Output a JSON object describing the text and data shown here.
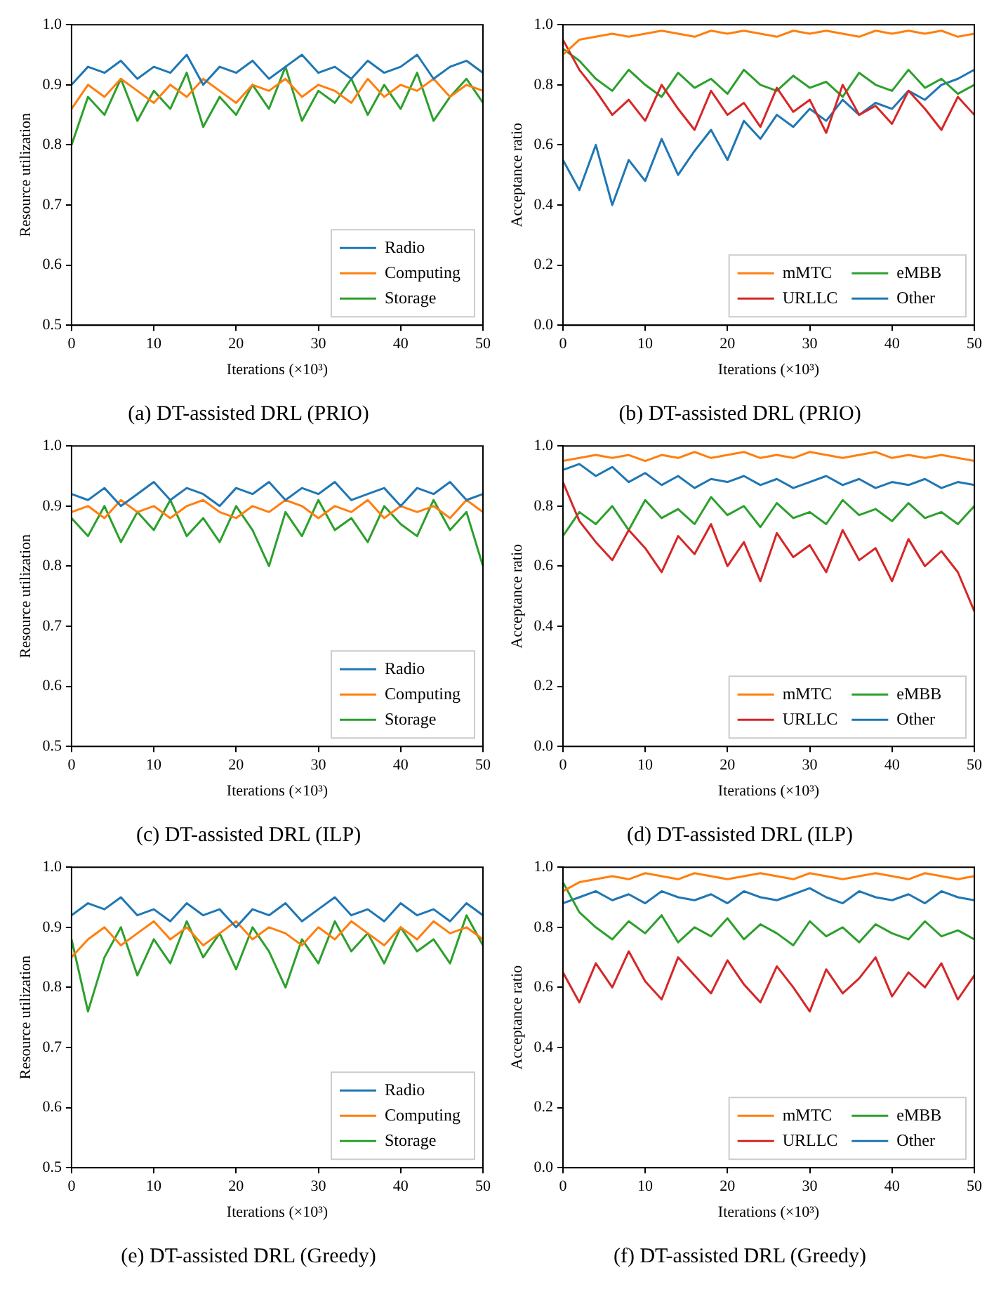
{
  "chart_data": [
    {
      "type": "line",
      "title": "(a) DT-assisted DRL (PRIO)",
      "xlabel": "Iterations (×10³)",
      "ylabel": "Resource utilization",
      "x": [
        0,
        2,
        4,
        6,
        8,
        10,
        12,
        14,
        16,
        18,
        20,
        22,
        24,
        26,
        28,
        30,
        32,
        34,
        36,
        38,
        40,
        42,
        44,
        46,
        48,
        50
      ],
      "xlim": [
        0,
        50
      ],
      "xticks": [
        0,
        10,
        20,
        30,
        40,
        50
      ],
      "ylim": [
        0.5,
        1.0
      ],
      "yticks": [
        {
          "value": 0.5,
          "label": "0.5"
        },
        {
          "value": 0.6,
          "label": "0.6"
        },
        {
          "value": 0.7,
          "label": "0.7"
        },
        {
          "value": 0.8,
          "label": "0.8"
        },
        {
          "value": 0.9,
          "label": "0.9"
        },
        {
          "value": 1.0,
          "label": "1.0"
        }
      ],
      "grid": false,
      "legend": "bottom right",
      "series": [
        {
          "name": "Radio",
          "color": "#1f77b4",
          "values": [
            0.9,
            0.93,
            0.92,
            0.94,
            0.91,
            0.93,
            0.92,
            0.95,
            0.9,
            0.93,
            0.92,
            0.94,
            0.91,
            0.93,
            0.95,
            0.92,
            0.93,
            0.91,
            0.94,
            0.92,
            0.93,
            0.95,
            0.91,
            0.93,
            0.94,
            0.92
          ]
        },
        {
          "name": "Computing",
          "color": "#ff7f0e",
          "values": [
            0.86,
            0.9,
            0.88,
            0.91,
            0.89,
            0.87,
            0.9,
            0.88,
            0.91,
            0.89,
            0.87,
            0.9,
            0.89,
            0.91,
            0.88,
            0.9,
            0.89,
            0.87,
            0.91,
            0.88,
            0.9,
            0.89,
            0.91,
            0.88,
            0.9,
            0.89
          ]
        },
        {
          "name": "Storage",
          "color": "#2ca02c",
          "values": [
            0.8,
            0.88,
            0.85,
            0.91,
            0.84,
            0.89,
            0.86,
            0.92,
            0.83,
            0.88,
            0.85,
            0.9,
            0.86,
            0.93,
            0.84,
            0.89,
            0.87,
            0.91,
            0.85,
            0.9,
            0.86,
            0.92,
            0.84,
            0.88,
            0.91,
            0.87
          ]
        }
      ]
    },
    {
      "type": "line",
      "title": "(b) DT-assisted DRL (PRIO)",
      "xlabel": "Iterations (×10³)",
      "ylabel": "Acceptance ratio",
      "x": [
        0,
        2,
        4,
        6,
        8,
        10,
        12,
        14,
        16,
        18,
        20,
        22,
        24,
        26,
        28,
        30,
        32,
        34,
        36,
        38,
        40,
        42,
        44,
        46,
        48,
        50
      ],
      "xlim": [
        0,
        50
      ],
      "xticks": [
        0,
        10,
        20,
        30,
        40,
        50
      ],
      "ylim": [
        0.0,
        1.0
      ],
      "yticks": [
        {
          "value": 0,
          "label": "0.0"
        },
        {
          "value": 0.2,
          "label": "0.2"
        },
        {
          "value": 0.4,
          "label": "0.4"
        },
        {
          "value": 0.6,
          "label": "0.6"
        },
        {
          "value": 0.8,
          "label": "0.8"
        },
        {
          "value": 1.0,
          "label": "1.0"
        }
      ],
      "grid": false,
      "legend": "bottom right",
      "series": [
        {
          "name": "mMTC",
          "color": "#ff7f0e",
          "values": [
            0.9,
            0.95,
            0.96,
            0.97,
            0.96,
            0.97,
            0.98,
            0.97,
            0.96,
            0.98,
            0.97,
            0.98,
            0.97,
            0.96,
            0.98,
            0.97,
            0.98,
            0.97,
            0.96,
            0.98,
            0.97,
            0.98,
            0.97,
            0.98,
            0.96,
            0.97
          ]
        },
        {
          "name": "URLLC",
          "color": "#d62728",
          "values": [
            0.95,
            0.85,
            0.78,
            0.7,
            0.75,
            0.68,
            0.8,
            0.72,
            0.65,
            0.78,
            0.7,
            0.74,
            0.66,
            0.79,
            0.71,
            0.75,
            0.64,
            0.8,
            0.7,
            0.73,
            0.67,
            0.78,
            0.72,
            0.65,
            0.76,
            0.7
          ]
        },
        {
          "name": "eMBB",
          "color": "#2ca02c",
          "values": [
            0.92,
            0.88,
            0.82,
            0.78,
            0.85,
            0.8,
            0.76,
            0.84,
            0.79,
            0.82,
            0.77,
            0.85,
            0.8,
            0.78,
            0.83,
            0.79,
            0.81,
            0.76,
            0.84,
            0.8,
            0.78,
            0.85,
            0.79,
            0.82,
            0.77,
            0.8
          ]
        },
        {
          "name": "Other",
          "color": "#1f77b4",
          "values": [
            0.55,
            0.45,
            0.6,
            0.4,
            0.55,
            0.48,
            0.62,
            0.5,
            0.58,
            0.65,
            0.55,
            0.68,
            0.62,
            0.7,
            0.66,
            0.72,
            0.68,
            0.75,
            0.7,
            0.74,
            0.72,
            0.78,
            0.75,
            0.8,
            0.82,
            0.85
          ]
        }
      ]
    },
    {
      "type": "line",
      "title": "(c) DT-assisted DRL (ILP)",
      "xlabel": "Iterations (×10³)",
      "ylabel": "Resource utilization",
      "x": [
        0,
        2,
        4,
        6,
        8,
        10,
        12,
        14,
        16,
        18,
        20,
        22,
        24,
        26,
        28,
        30,
        32,
        34,
        36,
        38,
        40,
        42,
        44,
        46,
        48,
        50
      ],
      "xlim": [
        0,
        50
      ],
      "xticks": [
        0,
        10,
        20,
        30,
        40,
        50
      ],
      "ylim": [
        0.5,
        1.0
      ],
      "yticks": [
        {
          "value": 0.5,
          "label": "0.5"
        },
        {
          "value": 0.6,
          "label": "0.6"
        },
        {
          "value": 0.7,
          "label": "0.7"
        },
        {
          "value": 0.8,
          "label": "0.8"
        },
        {
          "value": 0.9,
          "label": "0.9"
        },
        {
          "value": 1.0,
          "label": "1.0"
        }
      ],
      "grid": false,
      "legend": "bottom right",
      "series": [
        {
          "name": "Radio",
          "color": "#1f77b4",
          "values": [
            0.92,
            0.91,
            0.93,
            0.9,
            0.92,
            0.94,
            0.91,
            0.93,
            0.92,
            0.9,
            0.93,
            0.92,
            0.94,
            0.91,
            0.93,
            0.92,
            0.94,
            0.91,
            0.92,
            0.93,
            0.9,
            0.93,
            0.92,
            0.94,
            0.91,
            0.92
          ]
        },
        {
          "name": "Computing",
          "color": "#ff7f0e",
          "values": [
            0.89,
            0.9,
            0.88,
            0.91,
            0.89,
            0.9,
            0.88,
            0.9,
            0.91,
            0.89,
            0.88,
            0.9,
            0.89,
            0.91,
            0.9,
            0.88,
            0.9,
            0.89,
            0.91,
            0.88,
            0.9,
            0.89,
            0.9,
            0.88,
            0.91,
            0.89
          ]
        },
        {
          "name": "Storage",
          "color": "#2ca02c",
          "values": [
            0.88,
            0.85,
            0.9,
            0.84,
            0.89,
            0.86,
            0.91,
            0.85,
            0.88,
            0.84,
            0.9,
            0.86,
            0.8,
            0.89,
            0.85,
            0.91,
            0.86,
            0.88,
            0.84,
            0.9,
            0.87,
            0.85,
            0.91,
            0.86,
            0.89,
            0.8
          ]
        }
      ]
    },
    {
      "type": "line",
      "title": "(d) DT-assisted DRL (ILP)",
      "xlabel": "Iterations (×10³)",
      "ylabel": "Acceptance ratio",
      "x": [
        0,
        2,
        4,
        6,
        8,
        10,
        12,
        14,
        16,
        18,
        20,
        22,
        24,
        26,
        28,
        30,
        32,
        34,
        36,
        38,
        40,
        42,
        44,
        46,
        48,
        50
      ],
      "xlim": [
        0,
        50
      ],
      "xticks": [
        0,
        10,
        20,
        30,
        40,
        50
      ],
      "ylim": [
        0.0,
        1.0
      ],
      "yticks": [
        {
          "value": 0,
          "label": "0.0"
        },
        {
          "value": 0.2,
          "label": "0.2"
        },
        {
          "value": 0.4,
          "label": "0.4"
        },
        {
          "value": 0.6,
          "label": "0.6"
        },
        {
          "value": 0.8,
          "label": "0.8"
        },
        {
          "value": 1.0,
          "label": "1.0"
        }
      ],
      "grid": false,
      "legend": "bottom right",
      "series": [
        {
          "name": "mMTC",
          "color": "#ff7f0e",
          "values": [
            0.95,
            0.96,
            0.97,
            0.96,
            0.97,
            0.95,
            0.97,
            0.96,
            0.98,
            0.96,
            0.97,
            0.98,
            0.96,
            0.97,
            0.96,
            0.98,
            0.97,
            0.96,
            0.97,
            0.98,
            0.96,
            0.97,
            0.96,
            0.97,
            0.96,
            0.95
          ]
        },
        {
          "name": "URLLC",
          "color": "#d62728",
          "values": [
            0.88,
            0.75,
            0.68,
            0.62,
            0.72,
            0.66,
            0.58,
            0.7,
            0.64,
            0.74,
            0.6,
            0.68,
            0.55,
            0.71,
            0.63,
            0.67,
            0.58,
            0.72,
            0.62,
            0.66,
            0.55,
            0.69,
            0.6,
            0.65,
            0.58,
            0.45
          ]
        },
        {
          "name": "eMBB",
          "color": "#2ca02c",
          "values": [
            0.7,
            0.78,
            0.74,
            0.8,
            0.72,
            0.82,
            0.76,
            0.79,
            0.74,
            0.83,
            0.77,
            0.8,
            0.73,
            0.81,
            0.76,
            0.78,
            0.74,
            0.82,
            0.77,
            0.79,
            0.75,
            0.81,
            0.76,
            0.78,
            0.74,
            0.8
          ]
        },
        {
          "name": "Other",
          "color": "#1f77b4",
          "values": [
            0.92,
            0.94,
            0.9,
            0.93,
            0.88,
            0.91,
            0.87,
            0.9,
            0.86,
            0.89,
            0.88,
            0.9,
            0.87,
            0.89,
            0.86,
            0.88,
            0.9,
            0.87,
            0.89,
            0.86,
            0.88,
            0.87,
            0.89,
            0.86,
            0.88,
            0.87
          ]
        }
      ]
    },
    {
      "type": "line",
      "title": "(e) DT-assisted DRL (Greedy)",
      "xlabel": "Iterations (×10³)",
      "ylabel": "Resource utilization",
      "x": [
        0,
        2,
        4,
        6,
        8,
        10,
        12,
        14,
        16,
        18,
        20,
        22,
        24,
        26,
        28,
        30,
        32,
        34,
        36,
        38,
        40,
        42,
        44,
        46,
        48,
        50
      ],
      "xlim": [
        0,
        50
      ],
      "xticks": [
        0,
        10,
        20,
        30,
        40,
        50
      ],
      "ylim": [
        0.5,
        1.0
      ],
      "yticks": [
        {
          "value": 0.5,
          "label": "0.5"
        },
        {
          "value": 0.6,
          "label": "0.6"
        },
        {
          "value": 0.7,
          "label": "0.7"
        },
        {
          "value": 0.8,
          "label": "0.8"
        },
        {
          "value": 0.9,
          "label": "0.9"
        },
        {
          "value": 1.0,
          "label": "1.0"
        }
      ],
      "grid": false,
      "legend": "bottom right",
      "series": [
        {
          "name": "Radio",
          "color": "#1f77b4",
          "values": [
            0.92,
            0.94,
            0.93,
            0.95,
            0.92,
            0.93,
            0.91,
            0.94,
            0.92,
            0.93,
            0.9,
            0.93,
            0.92,
            0.94,
            0.91,
            0.93,
            0.95,
            0.92,
            0.93,
            0.91,
            0.94,
            0.92,
            0.93,
            0.91,
            0.94,
            0.92
          ]
        },
        {
          "name": "Computing",
          "color": "#ff7f0e",
          "values": [
            0.85,
            0.88,
            0.9,
            0.87,
            0.89,
            0.91,
            0.88,
            0.9,
            0.87,
            0.89,
            0.91,
            0.88,
            0.9,
            0.89,
            0.87,
            0.9,
            0.88,
            0.91,
            0.89,
            0.87,
            0.9,
            0.88,
            0.91,
            0.89,
            0.9,
            0.88
          ]
        },
        {
          "name": "Storage",
          "color": "#2ca02c",
          "values": [
            0.88,
            0.76,
            0.85,
            0.9,
            0.82,
            0.88,
            0.84,
            0.91,
            0.85,
            0.89,
            0.83,
            0.9,
            0.86,
            0.8,
            0.88,
            0.84,
            0.91,
            0.86,
            0.89,
            0.84,
            0.9,
            0.86,
            0.88,
            0.84,
            0.92,
            0.87
          ]
        }
      ]
    },
    {
      "type": "line",
      "title": "(f) DT-assisted DRL (Greedy)",
      "xlabel": "Iterations (×10³)",
      "ylabel": "Acceptance ratio",
      "x": [
        0,
        2,
        4,
        6,
        8,
        10,
        12,
        14,
        16,
        18,
        20,
        22,
        24,
        26,
        28,
        30,
        32,
        34,
        36,
        38,
        40,
        42,
        44,
        46,
        48,
        50
      ],
      "xlim": [
        0,
        50
      ],
      "xticks": [
        0,
        10,
        20,
        30,
        40,
        50
      ],
      "ylim": [
        0.0,
        1.0
      ],
      "yticks": [
        {
          "value": 0,
          "label": "0.0"
        },
        {
          "value": 0.2,
          "label": "0.2"
        },
        {
          "value": 0.4,
          "label": "0.4"
        },
        {
          "value": 0.6,
          "label": "0.6"
        },
        {
          "value": 0.8,
          "label": "0.8"
        },
        {
          "value": 1.0,
          "label": "1.0"
        }
      ],
      "grid": false,
      "legend": "bottom right",
      "series": [
        {
          "name": "mMTC",
          "color": "#ff7f0e",
          "values": [
            0.92,
            0.95,
            0.96,
            0.97,
            0.96,
            0.98,
            0.97,
            0.96,
            0.98,
            0.97,
            0.96,
            0.97,
            0.98,
            0.97,
            0.96,
            0.98,
            0.97,
            0.96,
            0.97,
            0.98,
            0.97,
            0.96,
            0.98,
            0.97,
            0.96,
            0.97
          ]
        },
        {
          "name": "URLLC",
          "color": "#d62728",
          "values": [
            0.65,
            0.55,
            0.68,
            0.6,
            0.72,
            0.62,
            0.56,
            0.7,
            0.64,
            0.58,
            0.69,
            0.61,
            0.55,
            0.67,
            0.6,
            0.52,
            0.66,
            0.58,
            0.63,
            0.7,
            0.57,
            0.65,
            0.6,
            0.68,
            0.56,
            0.64
          ]
        },
        {
          "name": "eMBB",
          "color": "#2ca02c",
          "values": [
            0.95,
            0.85,
            0.8,
            0.76,
            0.82,
            0.78,
            0.84,
            0.75,
            0.8,
            0.77,
            0.83,
            0.76,
            0.81,
            0.78,
            0.74,
            0.82,
            0.77,
            0.8,
            0.75,
            0.81,
            0.78,
            0.76,
            0.82,
            0.77,
            0.79,
            0.76
          ]
        },
        {
          "name": "Other",
          "color": "#1f77b4",
          "values": [
            0.88,
            0.9,
            0.92,
            0.89,
            0.91,
            0.88,
            0.92,
            0.9,
            0.89,
            0.91,
            0.88,
            0.92,
            0.9,
            0.89,
            0.91,
            0.93,
            0.9,
            0.88,
            0.92,
            0.9,
            0.89,
            0.91,
            0.88,
            0.92,
            0.9,
            0.89
          ]
        }
      ]
    }
  ]
}
